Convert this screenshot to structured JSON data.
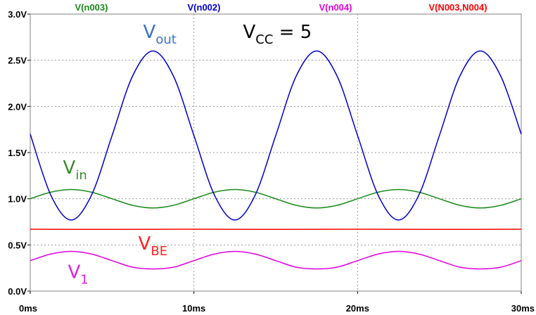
{
  "chart_data": {
    "type": "line",
    "xlim": [
      0,
      30
    ],
    "ylim": [
      0,
      3
    ],
    "x_ticks": [
      "0ms",
      "10ms",
      "20ms",
      "30ms"
    ],
    "y_ticks": [
      "0.0V",
      "0.5V",
      "1.0V",
      "1.5V",
      "2.0V",
      "2.5V",
      "3.0V"
    ],
    "grid": "dotted",
    "legend_position": "top",
    "series": [
      {
        "name": "V(n003)",
        "color": "#1a8a1a",
        "x": [
          0,
          1.25,
          2.5,
          3.75,
          5,
          6.25,
          7.5,
          8.75,
          10,
          11.25,
          12.5,
          13.75,
          15,
          16.25,
          17.5,
          18.75,
          20,
          21.25,
          22.5,
          23.75,
          25,
          26.25,
          27.5,
          28.75,
          30
        ],
        "y": [
          1.0,
          1.071,
          1.1,
          1.071,
          1.0,
          0.929,
          0.9,
          0.929,
          1.0,
          1.071,
          1.1,
          1.071,
          1.0,
          0.929,
          0.9,
          0.929,
          1.0,
          1.071,
          1.1,
          1.071,
          1.0,
          0.929,
          0.9,
          0.929,
          1.0
        ]
      },
      {
        "name": "V(n002)",
        "color": "#0000cc",
        "x": [
          0,
          1.25,
          2.5,
          3.75,
          5,
          6.25,
          7.5,
          8.75,
          10,
          11.25,
          12.5,
          13.75,
          15,
          16.25,
          17.5,
          18.75,
          20,
          21.25,
          22.5,
          23.75,
          25,
          26.25,
          27.5,
          28.75,
          30
        ],
        "y": [
          1.7,
          1.042,
          0.77,
          1.042,
          1.685,
          2.328,
          2.6,
          2.328,
          1.685,
          1.042,
          0.77,
          1.042,
          1.685,
          2.328,
          2.6,
          2.328,
          1.685,
          1.042,
          0.77,
          1.042,
          1.685,
          2.328,
          2.6,
          2.328,
          1.7
        ]
      },
      {
        "name": "V(n004)",
        "color": "#e000e0",
        "x": [
          0,
          1.25,
          2.5,
          3.75,
          5,
          6.25,
          7.5,
          8.75,
          10,
          11.25,
          12.5,
          13.75,
          15,
          16.25,
          17.5,
          18.75,
          20,
          21.25,
          22.5,
          23.75,
          25,
          26.25,
          27.5,
          28.75,
          30
        ],
        "y": [
          0.33,
          0.401,
          0.43,
          0.401,
          0.33,
          0.259,
          0.24,
          0.259,
          0.33,
          0.401,
          0.43,
          0.401,
          0.33,
          0.259,
          0.24,
          0.259,
          0.33,
          0.401,
          0.43,
          0.401,
          0.33,
          0.259,
          0.24,
          0.259,
          0.33
        ]
      },
      {
        "name": "V(N003,N004)",
        "color": "#ff0000",
        "x": [
          0,
          5,
          10,
          15,
          20,
          25,
          30
        ],
        "y": [
          0.67,
          0.668,
          0.67,
          0.668,
          0.67,
          0.668,
          0.67
        ]
      }
    ],
    "annotations": [
      {
        "main": "V",
        "sub": "out",
        "x": 6.9,
        "y": 2.74,
        "color": "#3a6fd0"
      },
      {
        "main": "V",
        "sub": "CC",
        "suffix": " = 5",
        "x": 13.0,
        "y": 2.74,
        "color": "#000000"
      },
      {
        "main": "V",
        "sub": "in",
        "x": 2.0,
        "y": 1.27,
        "color": "#3a8a2a"
      },
      {
        "main": "V",
        "sub": "BE",
        "x": 6.6,
        "y": 0.45,
        "color": "#ff2020"
      },
      {
        "main": "V",
        "sub": "1",
        "x": 2.3,
        "y": 0.14,
        "color": "#e020e0"
      }
    ]
  }
}
